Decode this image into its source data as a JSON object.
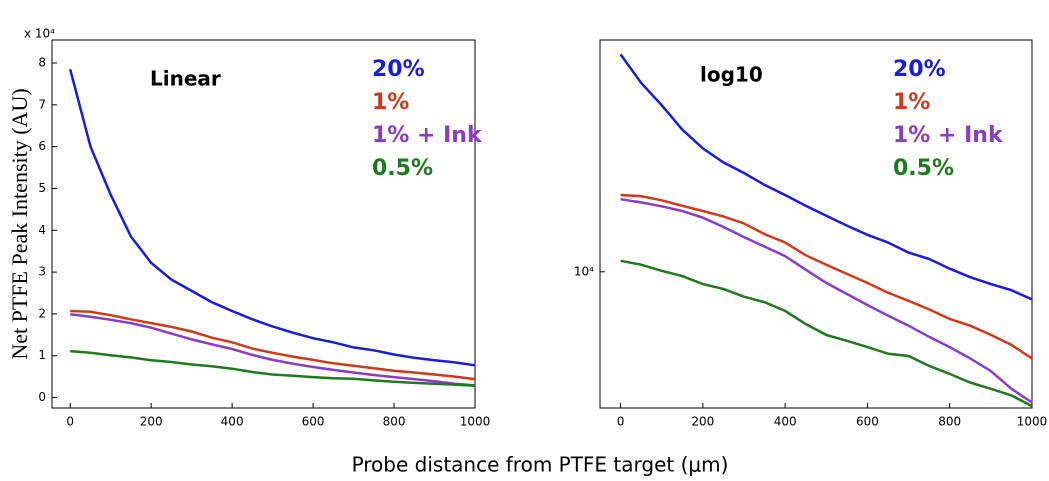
{
  "xlabel": "Probe distance from PTFE target (μm)",
  "ylabel": "Net PTFE Peak Intensity (AU)",
  "chart_data": [
    {
      "type": "line",
      "annotation": "Linear",
      "y_multiplier": "x 10⁴",
      "log_y": false,
      "x": [
        0,
        50,
        100,
        150,
        200,
        250,
        300,
        350,
        400,
        450,
        500,
        550,
        600,
        650,
        700,
        750,
        800,
        850,
        900,
        950,
        1000
      ],
      "xlim": [
        -45,
        1000
      ],
      "xticks": [
        0,
        200,
        400,
        600,
        800,
        1000
      ],
      "ylim": [
        -0.25,
        8.55
      ],
      "yticks": [
        0,
        1,
        2,
        3,
        4,
        5,
        6,
        7,
        8
      ],
      "series": [
        {
          "name": "20%",
          "color": "#1a1ae0",
          "values": [
            7.85,
            6.0,
            4.85,
            3.85,
            3.22,
            2.82,
            2.55,
            2.28,
            2.07,
            1.87,
            1.7,
            1.55,
            1.42,
            1.32,
            1.2,
            1.13,
            1.03,
            0.95,
            0.89,
            0.84,
            0.77
          ]
        },
        {
          "name": "1%",
          "color": "#d03a1a",
          "values": [
            2.07,
            2.05,
            1.97,
            1.87,
            1.78,
            1.69,
            1.58,
            1.43,
            1.32,
            1.17,
            1.07,
            0.98,
            0.9,
            0.82,
            0.76,
            0.7,
            0.64,
            0.6,
            0.55,
            0.5,
            0.44
          ]
        },
        {
          "name": "1% + Ink",
          "color": "#8a3cc8",
          "values": [
            1.99,
            1.93,
            1.86,
            1.78,
            1.67,
            1.53,
            1.39,
            1.27,
            1.16,
            1.02,
            0.9,
            0.81,
            0.73,
            0.66,
            0.6,
            0.54,
            0.49,
            0.44,
            0.39,
            0.33,
            0.29
          ]
        },
        {
          "name": "0.5%",
          "color": "#1f7a1f",
          "values": [
            1.11,
            1.07,
            1.01,
            0.96,
            0.89,
            0.85,
            0.79,
            0.75,
            0.69,
            0.61,
            0.55,
            0.52,
            0.49,
            0.46,
            0.45,
            0.41,
            0.38,
            0.35,
            0.33,
            0.31,
            0.28
          ]
        }
      ]
    },
    {
      "type": "line",
      "annotation": "log10",
      "log_y": true,
      "x": [
        0,
        50,
        100,
        150,
        200,
        250,
        300,
        350,
        400,
        450,
        500,
        550,
        600,
        650,
        700,
        750,
        800,
        850,
        900,
        950,
        1000
      ],
      "xlim": [
        -50,
        1000
      ],
      "xticks": [
        0,
        200,
        400,
        600,
        800,
        1000
      ],
      "ylim": [
        2750,
        90000
      ],
      "yticks": [
        {
          "value": 10000,
          "label": "10⁴"
        }
      ],
      "series": [
        {
          "name": "20%",
          "color": "#1a1ae0",
          "values": [
            78500,
            60000,
            48500,
            38500,
            32200,
            28200,
            25500,
            22800,
            20700,
            18700,
            17000,
            15500,
            14200,
            13200,
            12000,
            11300,
            10300,
            9500,
            8900,
            8400,
            7700
          ]
        },
        {
          "name": "1%",
          "color": "#d03a1a",
          "values": [
            20700,
            20500,
            19700,
            18700,
            17800,
            16900,
            15800,
            14300,
            13200,
            11700,
            10700,
            9800,
            9000,
            8200,
            7600,
            7000,
            6400,
            6000,
            5500,
            5000,
            4400
          ]
        },
        {
          "name": "1% + Ink",
          "color": "#8a3cc8",
          "values": [
            19900,
            19300,
            18600,
            17800,
            16700,
            15300,
            13900,
            12700,
            11600,
            10200,
            9000,
            8100,
            7300,
            6600,
            6000,
            5400,
            4900,
            4400,
            3900,
            3300,
            2900
          ]
        },
        {
          "name": "0.5%",
          "color": "#1f7a1f",
          "values": [
            11100,
            10700,
            10100,
            9600,
            8900,
            8500,
            7900,
            7500,
            6900,
            6100,
            5500,
            5200,
            4900,
            4600,
            4500,
            4100,
            3800,
            3500,
            3300,
            3100,
            2800
          ]
        }
      ]
    }
  ]
}
